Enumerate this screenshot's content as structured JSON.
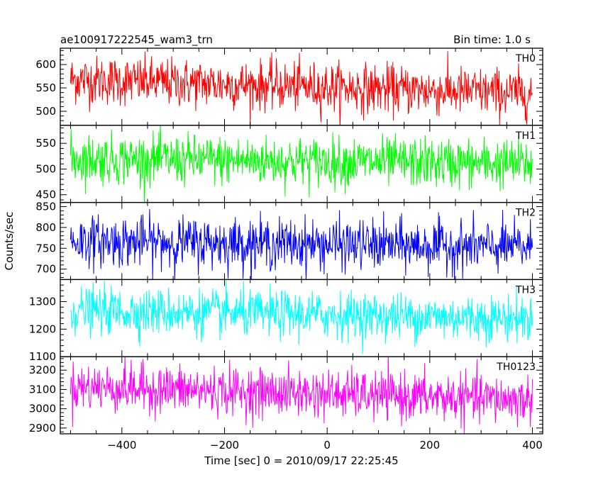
{
  "header": {
    "left_title": "ae100917222545_wam3_trn",
    "right_title": "Bin time: 1.0 s"
  },
  "axes": {
    "xlabel": "Time [sec] 0 = 2010/09/17 22:25:45",
    "ylabel": "Counts/sec"
  },
  "chart_data": {
    "type": "line",
    "title": "ae100917222545_wam3_trn",
    "subtitle": "Bin time: 1.0 s",
    "xlabel": "Time [sec] 0 = 2010/09/17 22:25:45",
    "ylabel": "Counts/sec",
    "xlim": [
      -520,
      420
    ],
    "x_ticks": [
      -400,
      -200,
      0,
      200,
      400
    ],
    "x_range_data": [
      -500,
      400
    ],
    "bin_time_s": 1.0,
    "grid": false,
    "legend": "none",
    "panels": [
      {
        "name": "TH0",
        "color": "#ff0000",
        "ylim": [
          470,
          635
        ],
        "yticks": [
          500,
          550,
          600
        ],
        "mean_start": 568,
        "mean_end": 538,
        "noise": 26
      },
      {
        "name": "TH1",
        "color": "#00ff00",
        "ylim": [
          435,
          585
        ],
        "yticks": [
          450,
          500,
          550
        ],
        "mean_start": 520,
        "mean_end": 510,
        "noise": 24
      },
      {
        "name": "TH2",
        "color": "#0000ff",
        "ylim": [
          675,
          860
        ],
        "yticks": [
          700,
          750,
          800,
          850
        ],
        "mean_start": 768,
        "mean_end": 752,
        "noise": 30
      },
      {
        "name": "TH3",
        "color": "#00ffff",
        "ylim": [
          1100,
          1380
        ],
        "yticks": [
          1100,
          1200,
          1300
        ],
        "mean_start": 1268,
        "mean_end": 1238,
        "noise": 42
      },
      {
        "name": "TH0123",
        "color": "#ff00ff",
        "ylim": [
          2870,
          3270
        ],
        "yticks": [
          2900,
          3000,
          3100,
          3200
        ],
        "mean_start": 3115,
        "mean_end": 3045,
        "noise": 62
      }
    ]
  }
}
